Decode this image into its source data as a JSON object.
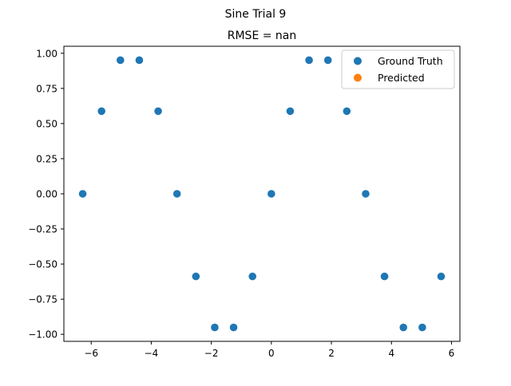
{
  "figure": {
    "suptitle": "Sine Trial 9"
  },
  "chart_data": {
    "type": "scatter",
    "title": "RMSE = nan",
    "xlabel": "",
    "ylabel": "",
    "xlim": [
      -6.91,
      6.28
    ],
    "ylim": [
      -1.05,
      1.05
    ],
    "xticks": [
      -6,
      -4,
      -2,
      0,
      2,
      4,
      6
    ],
    "xtick_labels": [
      "−6",
      "−4",
      "−2",
      "0",
      "2",
      "4",
      "6"
    ],
    "yticks": [
      1.0,
      0.75,
      0.5,
      0.25,
      0.0,
      -0.25,
      -0.5,
      -0.75,
      -1.0
    ],
    "ytick_labels": [
      "1.00",
      "0.75",
      "0.50",
      "0.25",
      "0.00",
      "−0.25",
      "−0.50",
      "−0.75",
      "−1.00"
    ],
    "grid": false,
    "legend_position": "top-right",
    "series": [
      {
        "name": "Ground Truth",
        "color": "#1f77b4",
        "x": [
          -6.283,
          -5.655,
          -5.027,
          -4.398,
          -3.77,
          -3.142,
          -2.513,
          -1.885,
          -1.257,
          -0.628,
          0.0,
          0.628,
          1.257,
          1.885,
          2.513,
          3.142,
          3.77,
          4.398,
          5.027,
          5.655
        ],
        "y": [
          0.0,
          0.588,
          0.951,
          0.951,
          0.588,
          0.0,
          -0.588,
          -0.951,
          -0.951,
          -0.588,
          0.0,
          0.588,
          0.951,
          0.951,
          0.588,
          0.0,
          -0.588,
          -0.951,
          -0.951,
          -0.588
        ]
      },
      {
        "name": "Predicted",
        "color": "#ff7f0e",
        "x": [],
        "y": []
      }
    ]
  }
}
